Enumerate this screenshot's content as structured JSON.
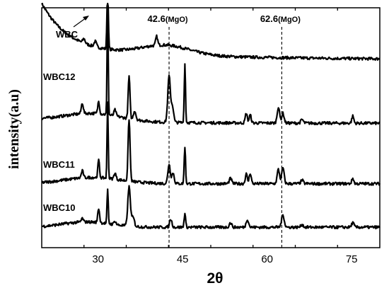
{
  "chart_data": {
    "type": "line",
    "xlabel": "2θ",
    "ylabel": "intensity(a.u)",
    "xlim": [
      20,
      80
    ],
    "xticks": [
      30,
      45,
      60,
      75
    ],
    "yticks_shown": false,
    "grid": false,
    "legend": "none (series labelled directly on plot)",
    "annotations": [
      {
        "text": "42.6(MgO)",
        "x": 42.6,
        "style": "dashed vertical line"
      },
      {
        "text": "62.6(MgO)",
        "x": 62.6,
        "style": "dashed vertical line"
      }
    ],
    "series": [
      {
        "name": "WBC",
        "color": "#000000",
        "offset": 10.6
      },
      {
        "name": "WBC12",
        "color": "#000000",
        "offset": 7.0
      },
      {
        "name": "WBC11",
        "color": "#000000",
        "offset": 3.5
      },
      {
        "name": "WBC10",
        "color": "#000000",
        "offset": 1.0
      }
    ]
  }
}
